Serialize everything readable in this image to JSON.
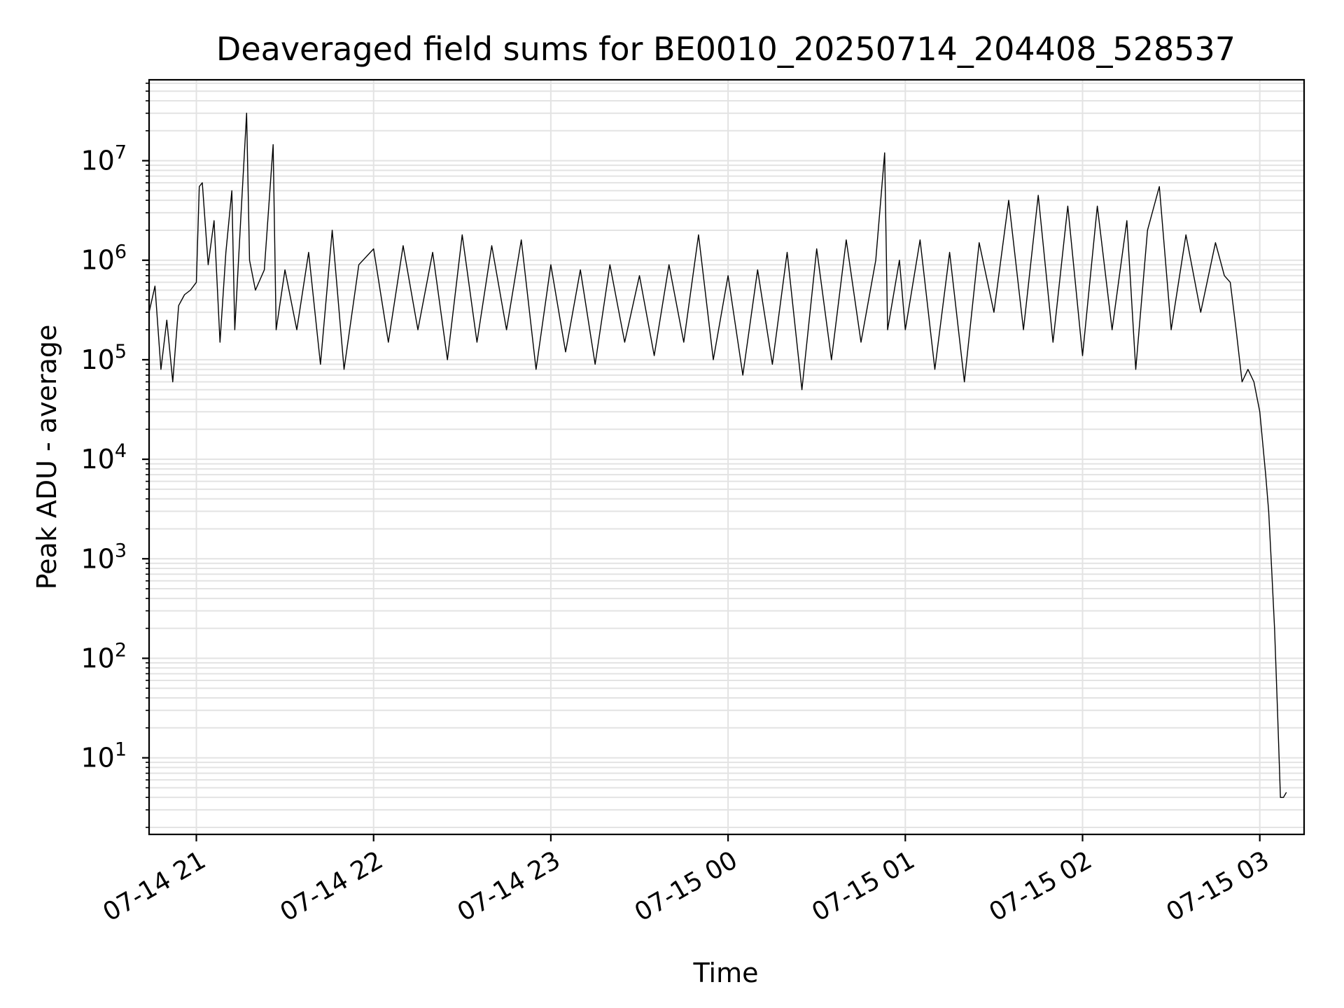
{
  "chart_data": {
    "type": "line",
    "title": "Deaveraged field sums for BE0010_20250714_204408_528537",
    "xlabel": "Time",
    "ylabel": "Peak ADU - average",
    "yscale": "log",
    "ylim": [
      1.7,
      65000000
    ],
    "xlim": [
      "2025-07-14 20:44",
      "2025-07-15 03:15"
    ],
    "grid": true,
    "x_tick_labels": [
      "07-14 21",
      "07-14 22",
      "07-14 23",
      "07-15 00",
      "07-15 01",
      "07-15 02",
      "07-15 03"
    ],
    "x_ticks": [
      "2025-07-14 21:00",
      "2025-07-14 22:00",
      "2025-07-14 23:00",
      "2025-07-15 00:00",
      "2025-07-15 01:00",
      "2025-07-15 02:00",
      "2025-07-15 03:00"
    ],
    "y_ticks": [
      {
        "value": 10,
        "base": "10",
        "exp": "1"
      },
      {
        "value": 100,
        "base": "10",
        "exp": "2"
      },
      {
        "value": 1000,
        "base": "10",
        "exp": "3"
      },
      {
        "value": 10000,
        "base": "10",
        "exp": "4"
      },
      {
        "value": 100000,
        "base": "10",
        "exp": "5"
      },
      {
        "value": 1000000,
        "base": "10",
        "exp": "6"
      },
      {
        "value": 10000000,
        "base": "10",
        "exp": "7"
      }
    ],
    "series": [
      {
        "color": "#000000",
        "points": [
          [
            "2025-07-14 20:44",
            300000
          ],
          [
            "2025-07-14 20:46",
            550000
          ],
          [
            "2025-07-14 20:48",
            80000
          ],
          [
            "2025-07-14 20:50",
            250000
          ],
          [
            "2025-07-14 20:52",
            60000
          ],
          [
            "2025-07-14 20:54",
            350000
          ],
          [
            "2025-07-14 20:56",
            450000
          ],
          [
            "2025-07-14 20:58",
            500000
          ],
          [
            "2025-07-14 21:00",
            600000
          ],
          [
            "2025-07-14 21:01",
            5500000
          ],
          [
            "2025-07-14 21:02",
            6000000
          ],
          [
            "2025-07-14 21:04",
            900000
          ],
          [
            "2025-07-14 21:06",
            2500000
          ],
          [
            "2025-07-14 21:08",
            150000
          ],
          [
            "2025-07-14 21:10",
            1200000
          ],
          [
            "2025-07-14 21:12",
            5000000
          ],
          [
            "2025-07-14 21:13",
            200000
          ],
          [
            "2025-07-14 21:15",
            2500000
          ],
          [
            "2025-07-14 21:17",
            30000000
          ],
          [
            "2025-07-14 21:18",
            1000000
          ],
          [
            "2025-07-14 21:20",
            500000
          ],
          [
            "2025-07-14 21:23",
            800000
          ],
          [
            "2025-07-14 21:26",
            14500000
          ],
          [
            "2025-07-14 21:27",
            200000
          ],
          [
            "2025-07-14 21:30",
            800000
          ],
          [
            "2025-07-14 21:34",
            200000
          ],
          [
            "2025-07-14 21:38",
            1200000
          ],
          [
            "2025-07-14 21:42",
            90000
          ],
          [
            "2025-07-14 21:46",
            2000000
          ],
          [
            "2025-07-14 21:50",
            80000
          ],
          [
            "2025-07-14 21:55",
            900000
          ],
          [
            "2025-07-14 22:00",
            1300000
          ],
          [
            "2025-07-14 22:05",
            150000
          ],
          [
            "2025-07-14 22:10",
            1400000
          ],
          [
            "2025-07-14 22:15",
            200000
          ],
          [
            "2025-07-14 22:20",
            1200000
          ],
          [
            "2025-07-14 22:25",
            100000
          ],
          [
            "2025-07-14 22:30",
            1800000
          ],
          [
            "2025-07-14 22:35",
            150000
          ],
          [
            "2025-07-14 22:40",
            1400000
          ],
          [
            "2025-07-14 22:45",
            200000
          ],
          [
            "2025-07-14 22:50",
            1600000
          ],
          [
            "2025-07-14 22:55",
            80000
          ],
          [
            "2025-07-14 23:00",
            900000
          ],
          [
            "2025-07-14 23:05",
            120000
          ],
          [
            "2025-07-14 23:10",
            800000
          ],
          [
            "2025-07-14 23:15",
            90000
          ],
          [
            "2025-07-14 23:20",
            900000
          ],
          [
            "2025-07-14 23:25",
            150000
          ],
          [
            "2025-07-14 23:30",
            700000
          ],
          [
            "2025-07-14 23:35",
            110000
          ],
          [
            "2025-07-14 23:40",
            900000
          ],
          [
            "2025-07-14 23:45",
            150000
          ],
          [
            "2025-07-14 23:50",
            1800000
          ],
          [
            "2025-07-14 23:55",
            100000
          ],
          [
            "2025-07-15 00:00",
            700000
          ],
          [
            "2025-07-15 00:05",
            70000
          ],
          [
            "2025-07-15 00:10",
            800000
          ],
          [
            "2025-07-15 00:15",
            90000
          ],
          [
            "2025-07-15 00:20",
            1200000
          ],
          [
            "2025-07-15 00:25",
            50000
          ],
          [
            "2025-07-15 00:30",
            1300000
          ],
          [
            "2025-07-15 00:35",
            100000
          ],
          [
            "2025-07-15 00:40",
            1600000
          ],
          [
            "2025-07-15 00:45",
            150000
          ],
          [
            "2025-07-15 00:50",
            1000000
          ],
          [
            "2025-07-15 00:53",
            12000000
          ],
          [
            "2025-07-15 00:54",
            200000
          ],
          [
            "2025-07-15 00:58",
            1000000
          ],
          [
            "2025-07-15 01:00",
            200000
          ],
          [
            "2025-07-15 01:05",
            1600000
          ],
          [
            "2025-07-15 01:10",
            80000
          ],
          [
            "2025-07-15 01:15",
            1200000
          ],
          [
            "2025-07-15 01:20",
            60000
          ],
          [
            "2025-07-15 01:25",
            1500000
          ],
          [
            "2025-07-15 01:30",
            300000
          ],
          [
            "2025-07-15 01:35",
            4000000
          ],
          [
            "2025-07-15 01:40",
            200000
          ],
          [
            "2025-07-15 01:45",
            4500000
          ],
          [
            "2025-07-15 01:50",
            150000
          ],
          [
            "2025-07-15 01:55",
            3500000
          ],
          [
            "2025-07-15 02:00",
            110000
          ],
          [
            "2025-07-15 02:05",
            3500000
          ],
          [
            "2025-07-15 02:10",
            200000
          ],
          [
            "2025-07-15 02:15",
            2500000
          ],
          [
            "2025-07-15 02:18",
            80000
          ],
          [
            "2025-07-15 02:22",
            2000000
          ],
          [
            "2025-07-15 02:26",
            5500000
          ],
          [
            "2025-07-15 02:30",
            200000
          ],
          [
            "2025-07-15 02:35",
            1800000
          ],
          [
            "2025-07-15 02:40",
            300000
          ],
          [
            "2025-07-15 02:45",
            1500000
          ],
          [
            "2025-07-15 02:48",
            700000
          ],
          [
            "2025-07-15 02:50",
            600000
          ],
          [
            "2025-07-15 02:52",
            200000
          ],
          [
            "2025-07-15 02:54",
            60000
          ],
          [
            "2025-07-15 02:56",
            80000
          ],
          [
            "2025-07-15 02:58",
            60000
          ],
          [
            "2025-07-15 03:00",
            30000
          ],
          [
            "2025-07-15 03:02",
            7000
          ],
          [
            "2025-07-15 03:03",
            3000
          ],
          [
            "2025-07-15 03:04",
            800
          ],
          [
            "2025-07-15 03:05",
            200
          ],
          [
            "2025-07-15 03:06",
            30
          ],
          [
            "2025-07-15 03:07",
            4
          ],
          [
            "2025-07-15 03:08",
            4
          ],
          [
            "2025-07-15 03:09",
            4.5
          ]
        ]
      }
    ]
  }
}
